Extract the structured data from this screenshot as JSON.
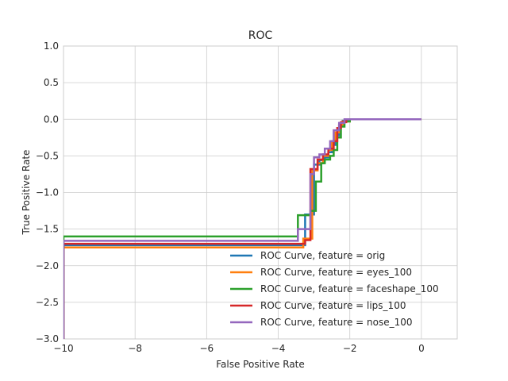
{
  "chart_data": {
    "type": "line",
    "title": "ROC",
    "xlabel": "False Positive Rate",
    "ylabel": "True Positive Rate",
    "xlim": [
      -10,
      1
    ],
    "ylim": [
      -3,
      1
    ],
    "xticks": [
      -10,
      -8,
      -6,
      -4,
      -2,
      0
    ],
    "yticks": [
      -3.0,
      -2.5,
      -2.0,
      -1.5,
      -1.0,
      -0.5,
      0.0,
      0.5,
      1.0
    ],
    "xtick_labels": [
      "−10",
      "−8",
      "−6",
      "−4",
      "−2",
      "0"
    ],
    "ytick_labels": [
      "−3.0",
      "−2.5",
      "−2.0",
      "−1.5",
      "−1.0",
      "−0.5",
      "0.0",
      "0.5",
      "1.0"
    ],
    "grid": true,
    "legend_position": "lower-right",
    "series": [
      {
        "name": "ROC Curve, feature = orig",
        "color": "#1f77b4",
        "points": [
          [
            -10,
            -3.0
          ],
          [
            -10,
            -1.72
          ],
          [
            -3.25,
            -1.72
          ],
          [
            -3.25,
            -1.3
          ],
          [
            -3.0,
            -1.3
          ],
          [
            -3.0,
            -0.62
          ],
          [
            -2.85,
            -0.62
          ],
          [
            -2.85,
            -0.56
          ],
          [
            -2.7,
            -0.56
          ],
          [
            -2.7,
            -0.52
          ],
          [
            -2.6,
            -0.52
          ],
          [
            -2.6,
            -0.45
          ],
          [
            -2.5,
            -0.45
          ],
          [
            -2.5,
            -0.35
          ],
          [
            -2.4,
            -0.35
          ],
          [
            -2.4,
            -0.22
          ],
          [
            -2.3,
            -0.22
          ],
          [
            -2.3,
            -0.08
          ],
          [
            -2.2,
            -0.08
          ],
          [
            -2.2,
            -0.02
          ],
          [
            -2.0,
            -0.02
          ],
          [
            -2.0,
            0.0
          ],
          [
            0,
            0.0
          ]
        ]
      },
      {
        "name": "ROC Curve, feature = eyes_100",
        "color": "#ff7f0e",
        "points": [
          [
            -10,
            -3.0
          ],
          [
            -10,
            -1.75
          ],
          [
            -3.3,
            -1.75
          ],
          [
            -3.3,
            -1.63
          ],
          [
            -3.05,
            -1.63
          ],
          [
            -3.05,
            -0.7
          ],
          [
            -2.9,
            -0.7
          ],
          [
            -2.9,
            -0.6
          ],
          [
            -2.75,
            -0.6
          ],
          [
            -2.75,
            -0.5
          ],
          [
            -2.6,
            -0.5
          ],
          [
            -2.6,
            -0.42
          ],
          [
            -2.5,
            -0.42
          ],
          [
            -2.5,
            -0.3
          ],
          [
            -2.4,
            -0.3
          ],
          [
            -2.4,
            -0.18
          ],
          [
            -2.3,
            -0.18
          ],
          [
            -2.3,
            -0.08
          ],
          [
            -2.2,
            -0.08
          ],
          [
            -2.2,
            -0.03
          ],
          [
            -2.0,
            -0.03
          ],
          [
            -2.0,
            0.0
          ],
          [
            0,
            0.0
          ]
        ]
      },
      {
        "name": "ROC Curve, feature = faceshape_100",
        "color": "#2ca02c",
        "points": [
          [
            -10,
            -3.0
          ],
          [
            -10,
            -1.6
          ],
          [
            -3.45,
            -1.6
          ],
          [
            -3.45,
            -1.31
          ],
          [
            -3.1,
            -1.31
          ],
          [
            -3.1,
            -1.25
          ],
          [
            -2.95,
            -1.25
          ],
          [
            -2.95,
            -0.85
          ],
          [
            -2.8,
            -0.85
          ],
          [
            -2.8,
            -0.6
          ],
          [
            -2.7,
            -0.6
          ],
          [
            -2.7,
            -0.55
          ],
          [
            -2.55,
            -0.55
          ],
          [
            -2.55,
            -0.5
          ],
          [
            -2.45,
            -0.5
          ],
          [
            -2.45,
            -0.42
          ],
          [
            -2.35,
            -0.42
          ],
          [
            -2.35,
            -0.25
          ],
          [
            -2.25,
            -0.25
          ],
          [
            -2.25,
            -0.1
          ],
          [
            -2.15,
            -0.1
          ],
          [
            -2.15,
            -0.03
          ],
          [
            -2.0,
            -0.03
          ],
          [
            -2.0,
            0.0
          ],
          [
            0,
            0.0
          ]
        ]
      },
      {
        "name": "ROC Curve, feature = lips_100",
        "color": "#d62728",
        "points": [
          [
            -10,
            -3.0
          ],
          [
            -10,
            -1.7
          ],
          [
            -3.25,
            -1.7
          ],
          [
            -3.25,
            -1.65
          ],
          [
            -3.1,
            -1.65
          ],
          [
            -3.1,
            -0.68
          ],
          [
            -2.9,
            -0.68
          ],
          [
            -2.9,
            -0.55
          ],
          [
            -2.75,
            -0.55
          ],
          [
            -2.75,
            -0.48
          ],
          [
            -2.6,
            -0.48
          ],
          [
            -2.6,
            -0.4
          ],
          [
            -2.45,
            -0.4
          ],
          [
            -2.45,
            -0.3
          ],
          [
            -2.35,
            -0.3
          ],
          [
            -2.35,
            -0.12
          ],
          [
            -2.25,
            -0.12
          ],
          [
            -2.25,
            -0.04
          ],
          [
            -2.1,
            -0.04
          ],
          [
            -2.1,
            0.0
          ],
          [
            0,
            0.0
          ]
        ]
      },
      {
        "name": "ROC Curve, feature = nose_100",
        "color": "#9467bd",
        "points": [
          [
            -10,
            -3.0
          ],
          [
            -10,
            -1.66
          ],
          [
            -3.45,
            -1.66
          ],
          [
            -3.45,
            -1.5
          ],
          [
            -3.1,
            -1.5
          ],
          [
            -3.1,
            -0.75
          ],
          [
            -3.0,
            -0.75
          ],
          [
            -3.0,
            -0.52
          ],
          [
            -2.85,
            -0.52
          ],
          [
            -2.85,
            -0.48
          ],
          [
            -2.7,
            -0.48
          ],
          [
            -2.7,
            -0.4
          ],
          [
            -2.55,
            -0.4
          ],
          [
            -2.55,
            -0.3
          ],
          [
            -2.45,
            -0.3
          ],
          [
            -2.45,
            -0.15
          ],
          [
            -2.3,
            -0.15
          ],
          [
            -2.3,
            -0.05
          ],
          [
            -2.15,
            -0.05
          ],
          [
            -2.15,
            0.0
          ],
          [
            0,
            0.0
          ]
        ]
      }
    ]
  }
}
